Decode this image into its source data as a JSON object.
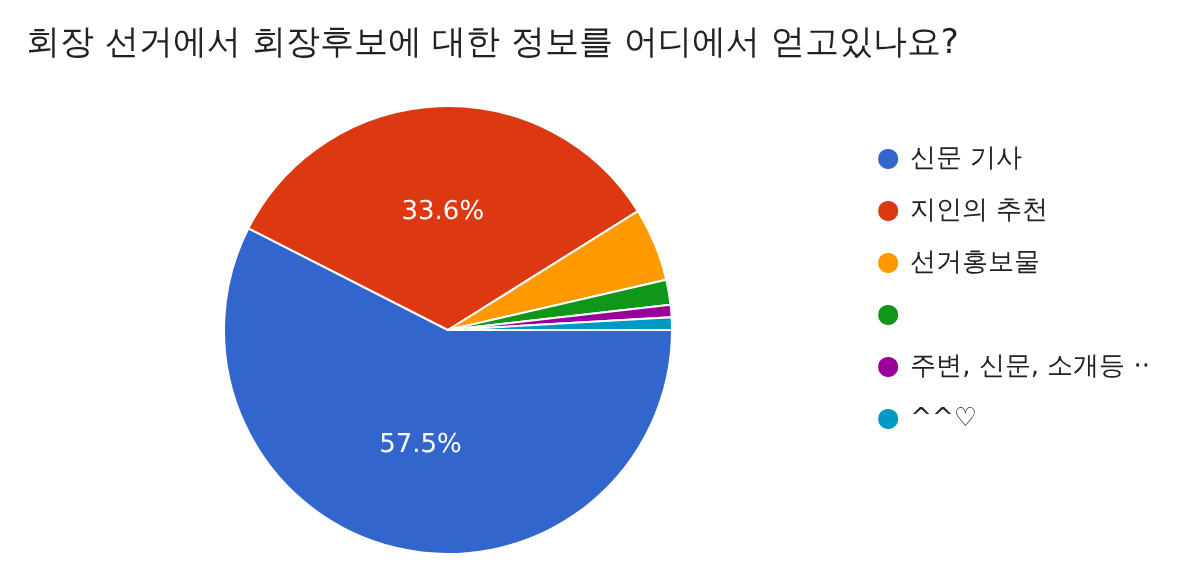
{
  "chart_data": {
    "type": "pie",
    "title": "회장 선거에서 회장후보에 대한 정보를 어디에서 얻고있나요?",
    "categories": [
      "신문 기사",
      "지인의 추천",
      "선거홍보물",
      null,
      "주변, 신문, 소개등 ··",
      "^^♡"
    ],
    "values": [
      57.5,
      33.6,
      5.3,
      1.8,
      0.9,
      0.9
    ],
    "colors": [
      "#3366cc",
      "#dc3912",
      "#ff9900",
      "#109618",
      "#990099",
      "#0099c6"
    ],
    "value_labels": [
      "57.5%",
      "33.6%",
      null,
      null,
      null,
      null
    ],
    "legend": "right"
  }
}
